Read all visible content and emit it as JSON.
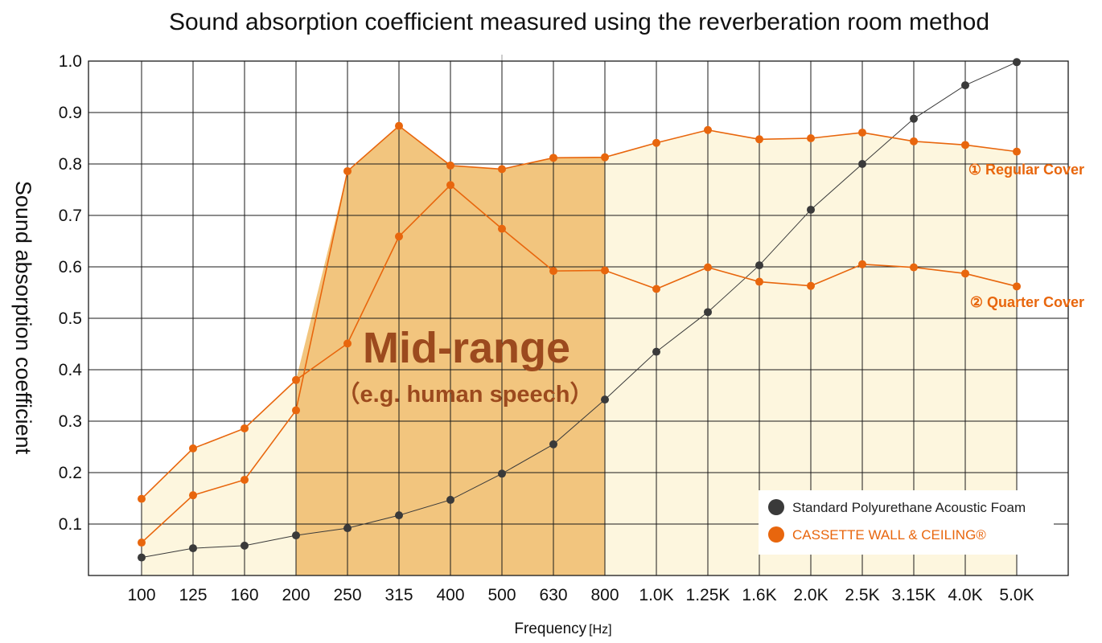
{
  "chart_data": {
    "type": "line",
    "title": "Sound absorption coefficient measured using the reverberation room method",
    "ylabel": "Sound absorption coefficient",
    "xlabel": "Frequency",
    "xlabel_unit": "[Hz]",
    "categories": [
      "100",
      "125",
      "160",
      "200",
      "250",
      "315",
      "400",
      "500",
      "630",
      "800",
      "1.0K",
      "1.25K",
      "1.6K",
      "2.0K",
      "2.5K",
      "3.15K",
      "4.0K",
      "5.0K"
    ],
    "yticks": [
      "1.0",
      "0.9",
      "0.8",
      "0.7",
      "0.6",
      "0.5",
      "0.4",
      "0.3",
      "0.2",
      "0.1"
    ],
    "ylim": [
      0,
      1.0
    ],
    "grid": true,
    "series": [
      {
        "name": "Standard Polyurethane Acoustic Foam",
        "color": "#3a3a3a",
        "values": [
          0.035,
          0.053,
          0.058,
          0.078,
          0.092,
          0.117,
          0.147,
          0.198,
          0.255,
          0.342,
          0.435,
          0.512,
          0.603,
          0.711,
          0.8,
          0.888,
          0.953,
          0.998
        ]
      },
      {
        "name": "① Regular Cover",
        "color": "#e8660d",
        "values": [
          0.064,
          0.156,
          0.186,
          0.321,
          0.786,
          0.874,
          0.797,
          0.79,
          0.812,
          0.813,
          0.841,
          0.866,
          0.848,
          0.85,
          0.861,
          0.844,
          0.837,
          0.824
        ]
      },
      {
        "name": "② Quarter Cover",
        "color": "#e8660d",
        "values": [
          0.149,
          0.247,
          0.286,
          0.38,
          0.451,
          0.659,
          0.759,
          0.674,
          0.592,
          0.593,
          0.557,
          0.599,
          0.571,
          0.563,
          0.605,
          0.599,
          0.587,
          0.562
        ]
      }
    ],
    "highlight": {
      "title": "Mid-range",
      "subtitle": "（e.g. human speech）",
      "from_category": "200",
      "to_category": "800"
    },
    "legend": {
      "placement": "bottom-right",
      "entries": [
        {
          "label": "Standard Polyurethane Acoustic Foam",
          "color": "#3a3a3a",
          "text_color": "#222222"
        },
        {
          "label": "CASSETTE WALL & CEILING®",
          "color": "#e8660d",
          "text_color": "#e8660d"
        }
      ]
    },
    "colors": {
      "orange": "#e8660d",
      "dark": "#3a3a3a",
      "midrange_fill": "#f2c57e",
      "area_fill": "#fdf6de",
      "midrange_text": "#9c4a1e"
    }
  }
}
